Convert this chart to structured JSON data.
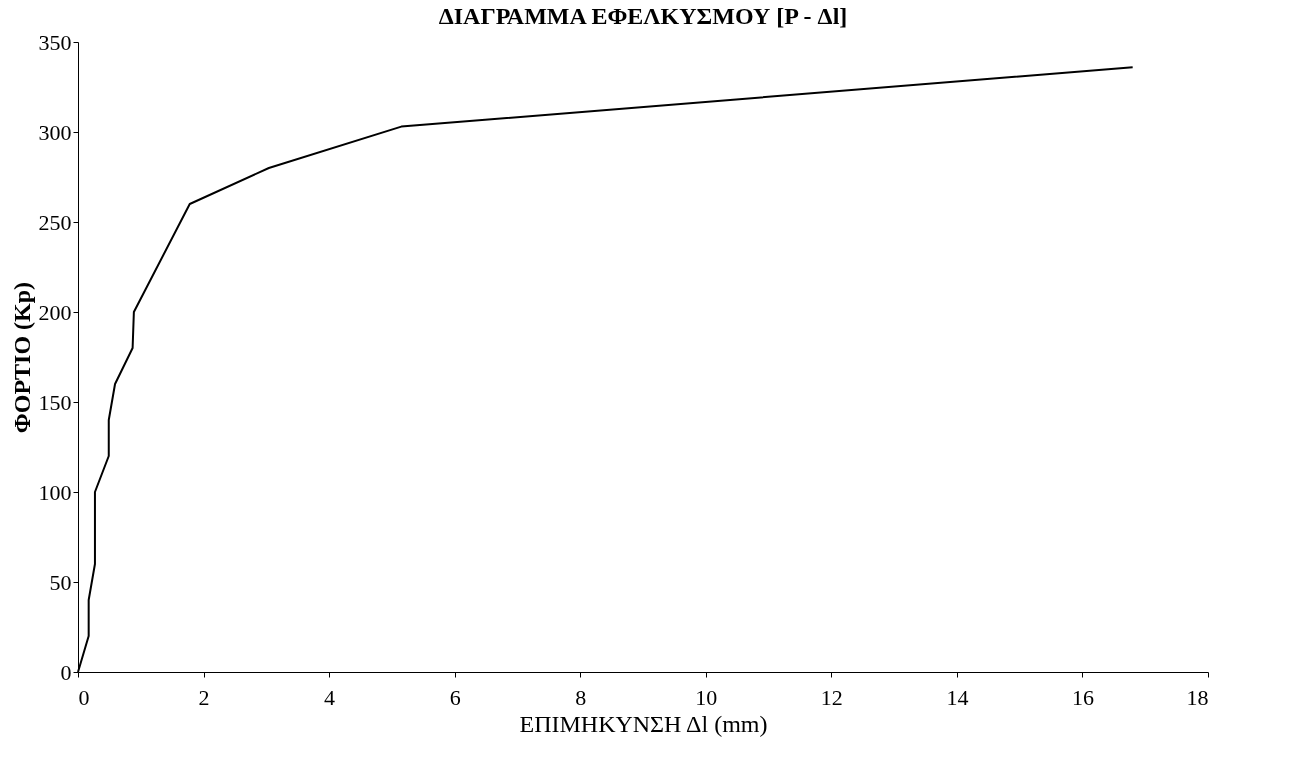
{
  "chart_data": {
    "type": "line",
    "title": "ΔΙΑΓΡΑΜΜΑ ΕΦΕΛΚΥΣΜΟΥ [P - Δl]",
    "xlabel": "ΕΠΙΜΗΚΥΝΣΗ Δl (mm)",
    "ylabel": "ΦΟΡΤΙΟ (Kp)",
    "xlim": [
      0,
      18
    ],
    "xticks": [
      0,
      2,
      4,
      6,
      8,
      10,
      12,
      14,
      16,
      18
    ],
    "ylim": [
      0,
      350
    ],
    "yticks": [
      0,
      50,
      100,
      150,
      200,
      250,
      300,
      350
    ],
    "grid": false,
    "marker": "none",
    "line_style": "solid",
    "series": [
      {
        "color": "#000000",
        "x": [
          0,
          0.17,
          0.17,
          0.27,
          0.27,
          0.49,
          0.49,
          0.59,
          0.87,
          0.89,
          1.78,
          3.04,
          5.15,
          16.8
        ],
        "values": [
          0,
          20,
          40,
          60,
          100,
          120,
          140,
          160,
          180,
          200,
          260,
          280,
          303,
          336
        ]
      }
    ]
  }
}
